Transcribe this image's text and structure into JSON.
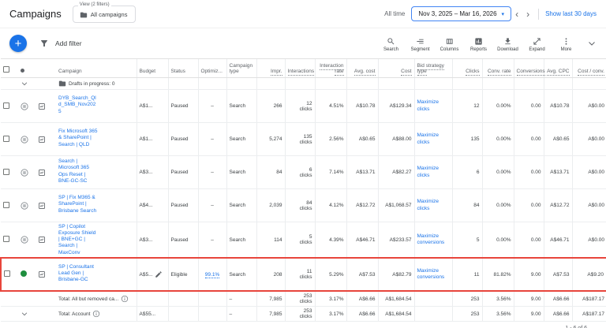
{
  "header": {
    "title": "Campaigns",
    "view_chip": {
      "label": "View (2 filters)",
      "value": "All campaigns"
    },
    "time_range_label": "All time",
    "date_range": "Nov 3, 2025 – Mar 16, 2026",
    "show_last": "Show last 30 days"
  },
  "toolbar": {
    "add_filter": "Add filter",
    "actions": [
      {
        "label": "Search",
        "icon": "search-icon"
      },
      {
        "label": "Segment",
        "icon": "segment-icon"
      },
      {
        "label": "Columns",
        "icon": "columns-icon"
      },
      {
        "label": "Reports",
        "icon": "reports-icon"
      },
      {
        "label": "Download",
        "icon": "download-icon"
      },
      {
        "label": "Expand",
        "icon": "expand-icon"
      },
      {
        "label": "More",
        "icon": "more-icon"
      }
    ]
  },
  "colors": {
    "accent": "#1a73e8",
    "highlight": "#e8453c",
    "enabled_green": "#1e8e3e"
  },
  "table": {
    "columns": [
      {
        "label": "Campaign",
        "key": "campaign",
        "align": "left",
        "metric": false
      },
      {
        "label": "Budget",
        "key": "budget",
        "align": "left",
        "metric": false
      },
      {
        "label": "Status",
        "key": "status",
        "align": "left",
        "metric": false
      },
      {
        "label": "Optimiz...",
        "key": "optimization",
        "align": "left",
        "metric": false
      },
      {
        "label": "Campaign type",
        "key": "type",
        "align": "left",
        "metric": false
      },
      {
        "label": "Impr.",
        "key": "impressions",
        "align": "right",
        "metric": true
      },
      {
        "label": "Interactions",
        "key": "interactions",
        "align": "right",
        "metric": true
      },
      {
        "label": "Interaction rate",
        "key": "interaction_rate",
        "align": "right",
        "metric": true
      },
      {
        "label": "Avg. cost",
        "key": "avg_cost",
        "align": "right",
        "metric": true
      },
      {
        "label": "Cost",
        "key": "cost",
        "align": "right",
        "metric": true
      },
      {
        "label": "Bid strategy type",
        "key": "bid_strategy",
        "align": "left",
        "metric": true
      },
      {
        "label": "Clicks",
        "key": "clicks",
        "align": "right",
        "metric": true
      },
      {
        "label": "Conv. rate",
        "key": "conv_rate",
        "align": "right",
        "metric": true
      },
      {
        "label": "Conversions",
        "key": "conversions",
        "align": "right",
        "metric": true
      },
      {
        "label": "Avg. CPC",
        "key": "avg_cpc",
        "align": "right",
        "metric": true
      },
      {
        "label": "Cost / conv.",
        "key": "cost_per_conv",
        "align": "right",
        "metric": true
      }
    ],
    "drafts_row_label": "Drafts in progress: 0",
    "rows": [
      {
        "dot": "paused",
        "campaign": "DYB_Search_Qld_SMB_Nov2025",
        "budget": "A$1...",
        "budget_icon": false,
        "status": "Paused",
        "optimization": "–",
        "optimization_link": false,
        "type": "Search",
        "impressions": "266",
        "interactions": "12",
        "interactions_unit": "clicks",
        "interaction_rate": "4.51%",
        "avg_cost": "A$10.78",
        "cost": "A$129.34",
        "bid_strategy": "Maximize clicks",
        "clicks": "12",
        "conv_rate": "0.00%",
        "conversions": "0.00",
        "avg_cpc": "A$10.78",
        "cost_per_conv": "A$0.00",
        "highlighted": false
      },
      {
        "dot": "paused",
        "campaign": "Fix Microsoft 365 & SharePoint | Search | QLD",
        "budget": "A$1...",
        "budget_icon": false,
        "status": "Paused",
        "optimization": "–",
        "optimization_link": false,
        "type": "Search",
        "impressions": "5,274",
        "interactions": "135",
        "interactions_unit": "clicks",
        "interaction_rate": "2.56%",
        "avg_cost": "A$0.65",
        "cost": "A$88.00",
        "bid_strategy": "Maximize clicks",
        "clicks": "135",
        "conv_rate": "0.00%",
        "conversions": "0.00",
        "avg_cpc": "A$0.65",
        "cost_per_conv": "A$0.00",
        "highlighted": false
      },
      {
        "dot": "paused",
        "campaign": "Search | Microsoft 365 Ops Reset | BNE-GC-SC",
        "budget": "A$3...",
        "budget_icon": false,
        "status": "Paused",
        "optimization": "–",
        "optimization_link": false,
        "type": "Search",
        "impressions": "84",
        "interactions": "6",
        "interactions_unit": "clicks",
        "interaction_rate": "7.14%",
        "avg_cost": "A$13.71",
        "cost": "A$82.27",
        "bid_strategy": "Maximize clicks",
        "clicks": "6",
        "conv_rate": "0.00%",
        "conversions": "0.00",
        "avg_cpc": "A$13.71",
        "cost_per_conv": "A$0.00",
        "highlighted": false
      },
      {
        "dot": "paused",
        "campaign": "SP | Fix M365 & SharePoint | Brisbane Search",
        "budget": "A$4...",
        "budget_icon": false,
        "status": "Paused",
        "optimization": "–",
        "optimization_link": false,
        "type": "Search",
        "impressions": "2,039",
        "interactions": "84",
        "interactions_unit": "clicks",
        "interaction_rate": "4.12%",
        "avg_cost": "A$12.72",
        "cost": "A$1,068.57",
        "bid_strategy": "Maximize clicks",
        "clicks": "84",
        "conv_rate": "0.00%",
        "conversions": "0.00",
        "avg_cpc": "A$12.72",
        "cost_per_conv": "A$0.00",
        "highlighted": false
      },
      {
        "dot": "paused",
        "campaign": "SP | Copilot Exposure Shield | BNE+GC | Search | MaxConv",
        "budget": "A$3...",
        "budget_icon": false,
        "status": "Paused",
        "optimization": "–",
        "optimization_link": false,
        "type": "Search",
        "impressions": "114",
        "interactions": "5",
        "interactions_unit": "clicks",
        "interaction_rate": "4.39%",
        "avg_cost": "A$46.71",
        "cost": "A$233.57",
        "bid_strategy": "Maximize conversions",
        "clicks": "5",
        "conv_rate": "0.00%",
        "conversions": "0.00",
        "avg_cpc": "A$46.71",
        "cost_per_conv": "A$0.00",
        "highlighted": false
      },
      {
        "dot": "enabled",
        "campaign": "SP | Consultant Lead Gen | Brisbane-GC",
        "budget": "A$5...",
        "budget_icon": true,
        "status": "Eligible",
        "optimization": "99.1%",
        "optimization_link": true,
        "type": "Search",
        "impressions": "208",
        "interactions": "11",
        "interactions_unit": "clicks",
        "interaction_rate": "5.29%",
        "avg_cost": "A$7.53",
        "cost": "A$82.79",
        "bid_strategy": "Maximize conversions",
        "clicks": "11",
        "conv_rate": "81.82%",
        "conversions": "9.00",
        "avg_cpc": "A$7.53",
        "cost_per_conv": "A$9.20",
        "highlighted": true
      }
    ],
    "totals": [
      {
        "label": "Total: All but removed ca...",
        "info": true,
        "chevron": false,
        "budget": "",
        "status": "",
        "optimization": "",
        "type": "–",
        "impressions": "7,985",
        "interactions": "253",
        "interactions_unit": "clicks",
        "interaction_rate": "3.17%",
        "avg_cost": "A$6.66",
        "cost": "A$1,684.54",
        "bid_strategy": "",
        "clicks": "253",
        "conv_rate": "3.56%",
        "conversions": "9.00",
        "avg_cpc": "A$6.66",
        "cost_per_conv": "A$187.17"
      },
      {
        "label": "Total: Account",
        "info": true,
        "chevron": true,
        "budget": "A$55...",
        "status": "",
        "optimization": "",
        "type": "–",
        "impressions": "7,985",
        "interactions": "253",
        "interactions_unit": "clicks",
        "interaction_rate": "3.17%",
        "avg_cost": "A$6.66",
        "cost": "A$1,684.54",
        "bid_strategy": "",
        "clicks": "253",
        "conv_rate": "3.56%",
        "conversions": "9.00",
        "avg_cpc": "A$6.66",
        "cost_per_conv": "A$187.17"
      }
    ]
  },
  "pagination": "1 - 6 of 6"
}
